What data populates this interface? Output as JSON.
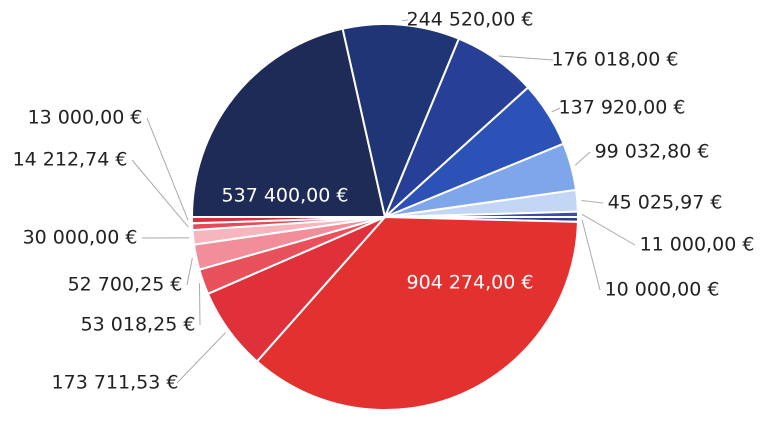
{
  "chart_data": {
    "type": "pie",
    "values": [
      537400,
      244520,
      176018,
      137920,
      99032.8,
      45025.97,
      11000,
      10000,
      904274,
      173711.53,
      53018.25,
      52700.25,
      30000,
      14212.74,
      13000
    ],
    "value_labels": [
      "537 400,00 €",
      "244 520,00 €",
      "176 018,00 €",
      "137 920,00 €",
      "99 032,80 €",
      "45 025,97 €",
      "11 000,00 €",
      "10 000,00 €",
      "904 274,00 €",
      "173 711,53 €",
      "53 018,25 €",
      "52 700,25 €",
      "30 000,00 €",
      "14 212,74 €",
      "13 000,00 €"
    ],
    "colors": [
      "#1f2b57",
      "#1f3575",
      "#283f98",
      "#2c52b8",
      "#7fa6ea",
      "#c3d6f6",
      "#3a4ea8",
      "#2a3f8f",
      "#e3312f",
      "#e0303a",
      "#e8505c",
      "#f28e9a",
      "#f7b6be",
      "#e54a5a",
      "#d8303f"
    ]
  }
}
